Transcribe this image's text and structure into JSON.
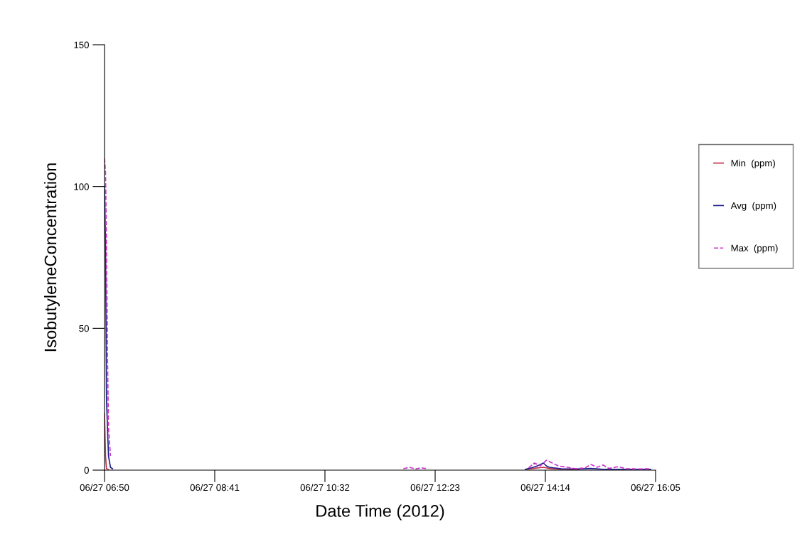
{
  "chart_data": {
    "type": "line",
    "xlabel": "Date Time (2012)",
    "ylabel": "IsobutyleneConcentration",
    "xlim": [
      "2012-06-27T06:50",
      "2012-06-27T16:05"
    ],
    "ylim": [
      0,
      150
    ],
    "xticks": [
      {
        "value": "2012-06-27T06:50",
        "label": "06/27 06:50"
      },
      {
        "value": "2012-06-27T08:41",
        "label": "06/27 08:41"
      },
      {
        "value": "2012-06-27T10:32",
        "label": "06/27 10:32"
      },
      {
        "value": "2012-06-27T12:23",
        "label": "06/27 12:23"
      },
      {
        "value": "2012-06-27T14:14",
        "label": "06/27 14:14"
      },
      {
        "value": "2012-06-27T16:05",
        "label": "06/27 16:05"
      }
    ],
    "yticks": [
      0,
      50,
      100,
      150
    ],
    "grid": false,
    "legend": "right",
    "marker": "none",
    "series": [
      {
        "name": "Min  (ppm)",
        "color": "#c03048",
        "line_style": "solid",
        "x": [
          "2012-06-27T06:50",
          "2012-06-27T06:51",
          "2012-06-27T06:52",
          "2012-06-27T06:54",
          "2012-06-27T12:12",
          "2012-06-27T13:54",
          "2012-06-27T14:00",
          "2012-06-27T14:06",
          "2012-06-27T14:12",
          "2012-06-27T14:18",
          "2012-06-27T14:30",
          "2012-06-27T14:48"
        ],
        "values": [
          20,
          5,
          0.5,
          0.2,
          null,
          0.2,
          0.5,
          0.8,
          1.0,
          0.6,
          0.3,
          0.2
        ]
      },
      {
        "name": "Avg  (ppm)",
        "color": "#1c1c8c",
        "line_style": "solid",
        "x": [
          "2012-06-27T06:50",
          "2012-06-27T06:51",
          "2012-06-27T06:52",
          "2012-06-27T06:53",
          "2012-06-27T06:54",
          "2012-06-27T06:56",
          "2012-06-27T06:58",
          "2012-06-27T12:12",
          "2012-06-27T13:54",
          "2012-06-27T14:00",
          "2012-06-27T14:06",
          "2012-06-27T14:12",
          "2012-06-27T14:15",
          "2012-06-27T14:18",
          "2012-06-27T14:30",
          "2012-06-27T14:48",
          "2012-06-27T15:00",
          "2012-06-27T15:12",
          "2012-06-27T15:36",
          "2012-06-27T16:00"
        ],
        "values": [
          100,
          80,
          25,
          15,
          5,
          1,
          0.5,
          null,
          0.3,
          0.8,
          1.5,
          2.5,
          1.5,
          1.0,
          0.5,
          0.4,
          0.6,
          0.3,
          0.3,
          0.3
        ]
      },
      {
        "name": "Max  (ppm)",
        "color": "#cc33cc",
        "line_style": "dashed",
        "x": [
          "2012-06-27T06:50",
          "2012-06-27T06:51",
          "2012-06-27T06:52",
          "2012-06-27T06:53",
          "2012-06-27T06:54",
          "2012-06-27T06:56",
          "2012-06-27T09:00",
          "2012-06-27T11:51",
          "2012-06-27T11:57",
          "2012-06-27T12:03",
          "2012-06-27T12:09",
          "2012-06-27T12:15",
          "2012-06-27T13:00",
          "2012-06-27T13:57",
          "2012-06-27T14:03",
          "2012-06-27T14:09",
          "2012-06-27T14:15",
          "2012-06-27T14:21",
          "2012-06-27T14:27",
          "2012-06-27T14:36",
          "2012-06-27T14:45",
          "2012-06-27T14:54",
          "2012-06-27T15:00",
          "2012-06-27T15:06",
          "2012-06-27T15:12",
          "2012-06-27T15:18",
          "2012-06-27T15:27",
          "2012-06-27T15:36",
          "2012-06-27T15:48",
          "2012-06-27T16:00"
        ],
        "values": [
          110,
          105,
          80,
          40,
          15,
          5,
          null,
          0.5,
          1.0,
          0.4,
          0.8,
          0.5,
          null,
          0.8,
          2.5,
          1.5,
          3.5,
          2.5,
          1.5,
          1.0,
          0.5,
          0.8,
          2.0,
          1.0,
          1.8,
          0.6,
          1.2,
          0.5,
          0.4,
          0.5
        ]
      }
    ]
  }
}
